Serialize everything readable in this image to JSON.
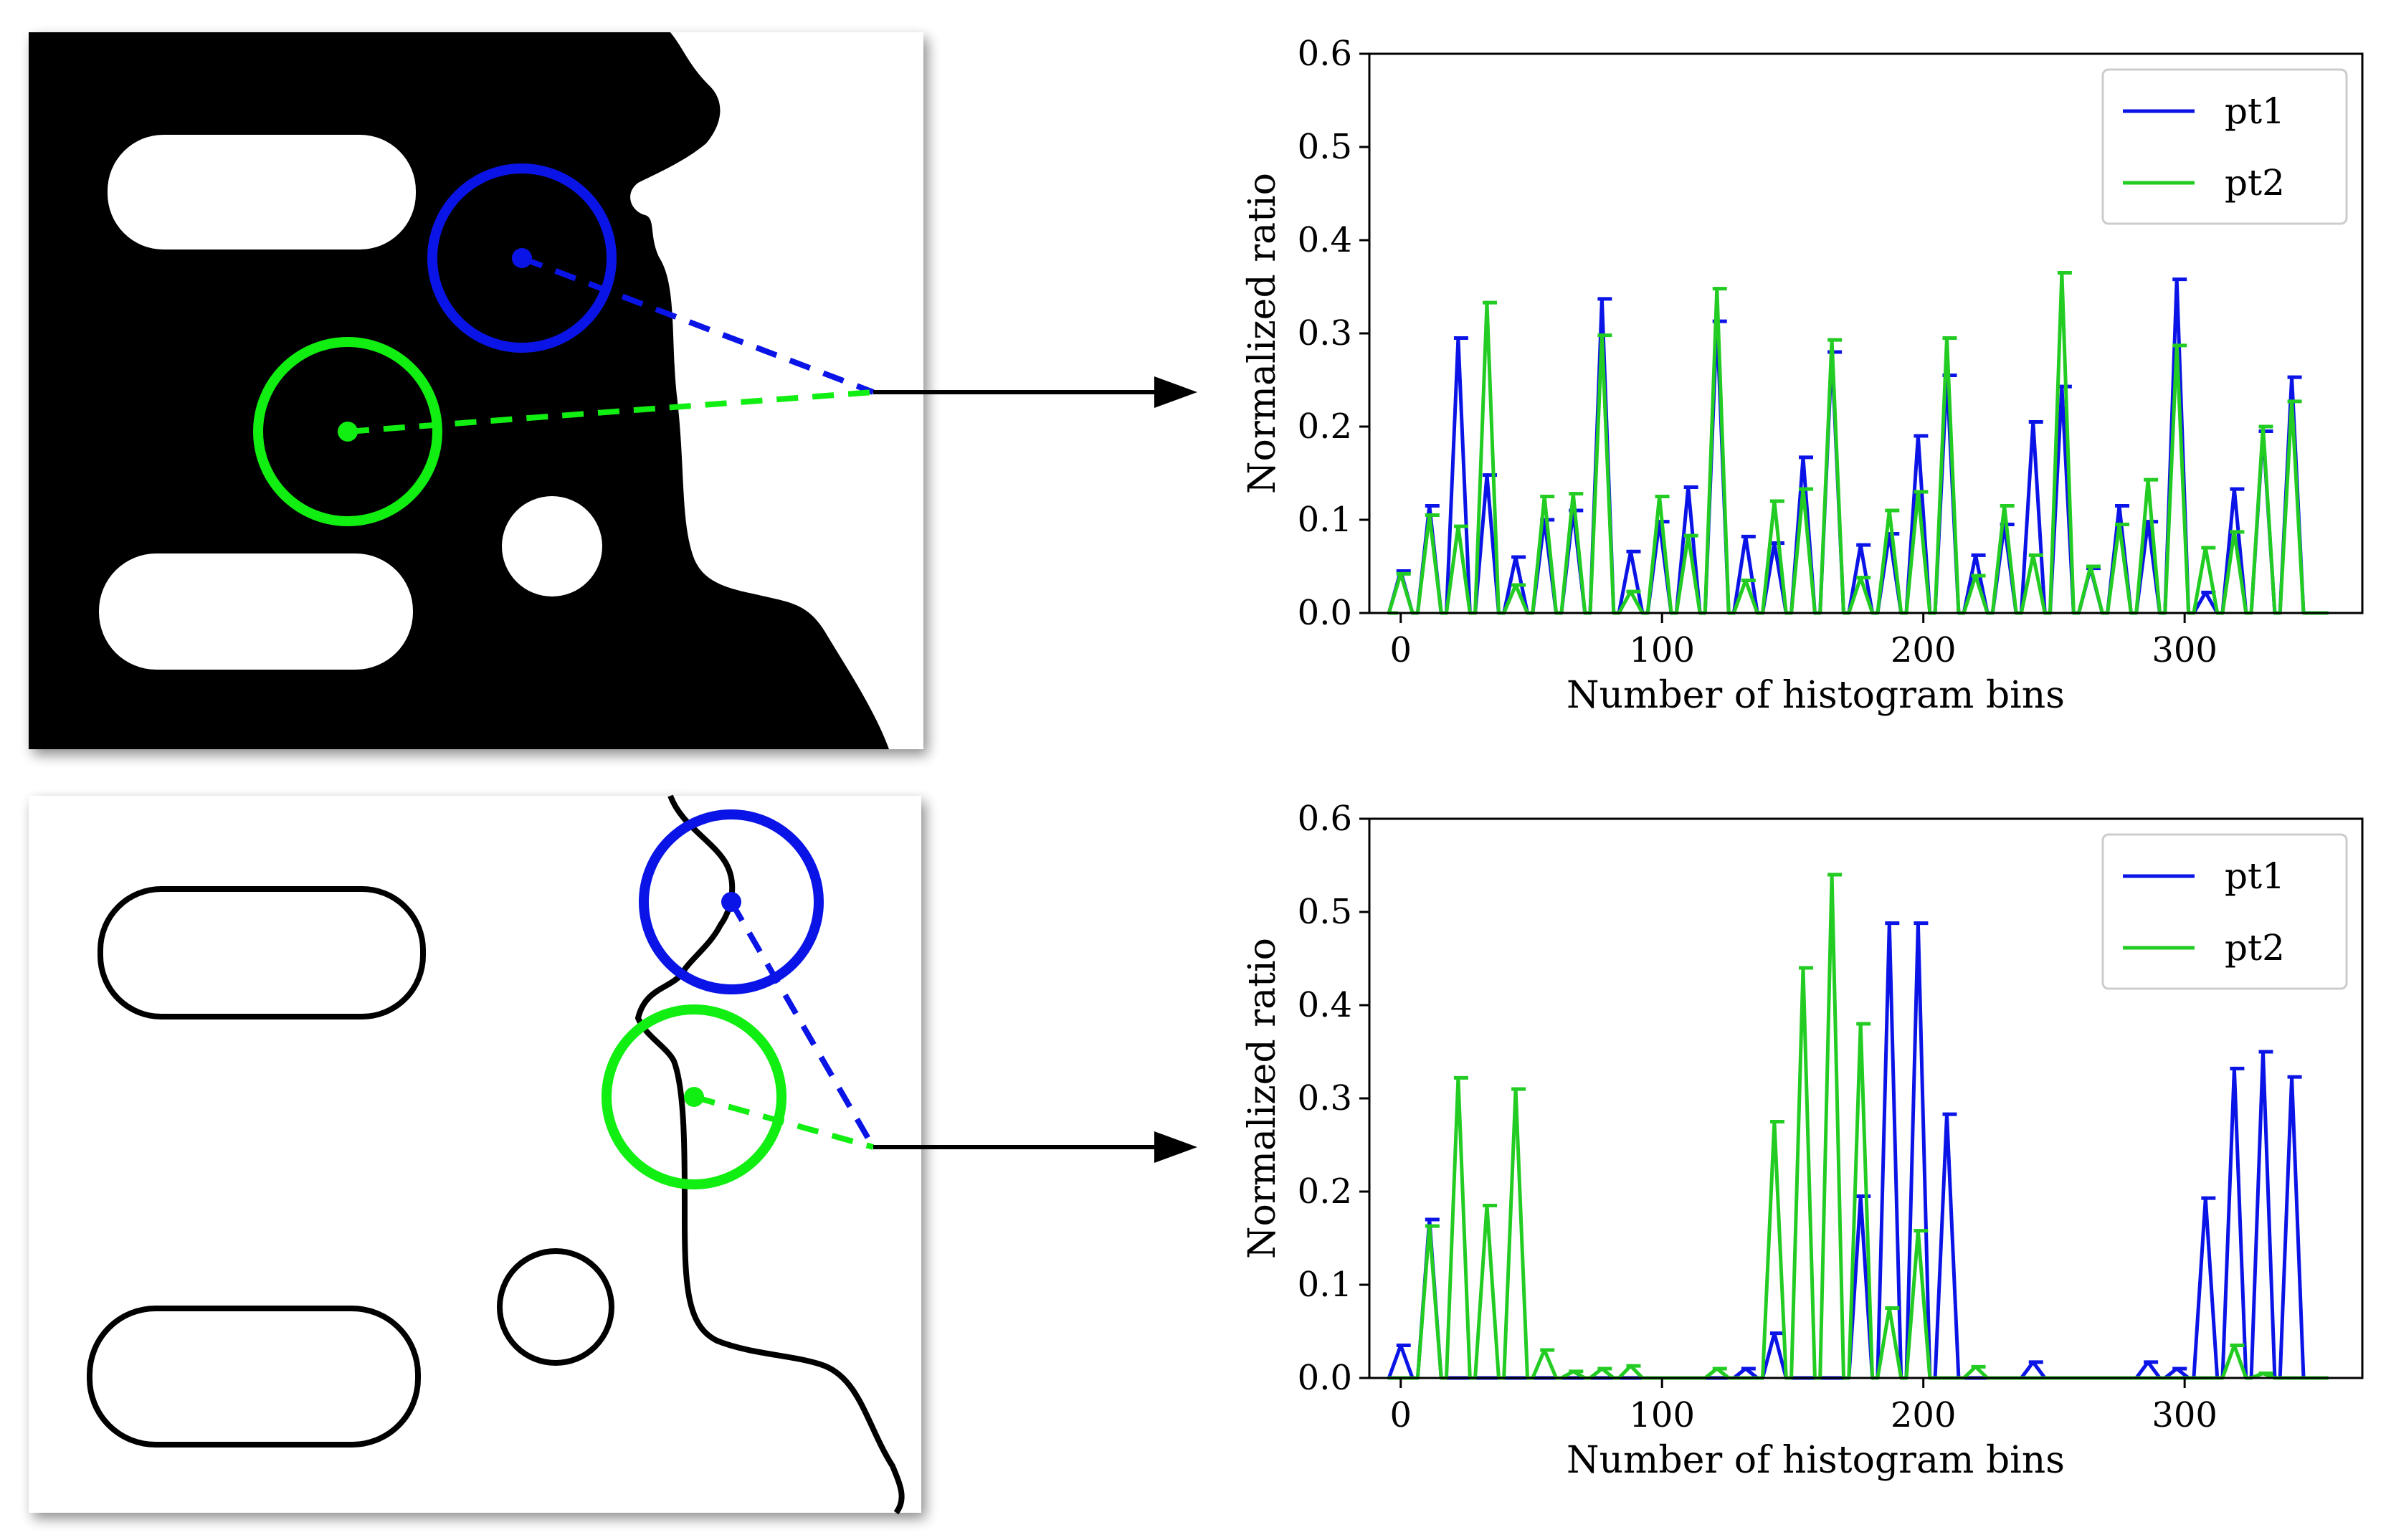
{
  "colors": {
    "pt1": "#0a14e6",
    "pt2": "#22cc22",
    "arrow": "#000000",
    "circle_pt1": "#0a14e6",
    "circle_pt2": "#11ee11"
  },
  "top_image": {
    "kind": "binary-silhouette",
    "description_icon": "binary-mask-image"
  },
  "bottom_image": {
    "kind": "edge-contours",
    "description_icon": "edge-map-image"
  },
  "chart_data": [
    {
      "type": "line",
      "xlabel": "Number of histogram bins",
      "ylabel": "Normalized ratio",
      "xlim": [
        -12,
        368
      ],
      "ylim": [
        0,
        0.6
      ],
      "xticks": [
        0,
        100,
        200,
        300
      ],
      "yticks": [
        "0.0",
        "0.1",
        "0.2",
        "0.3",
        "0.4",
        "0.5",
        "0.6"
      ],
      "legend_position": "top-right",
      "peak_x": [
        0,
        11,
        22,
        33,
        44,
        55,
        66,
        77,
        88,
        99,
        110,
        121,
        132,
        143,
        154,
        165,
        176,
        187,
        198,
        209,
        220,
        231,
        242,
        253,
        264,
        275,
        286,
        297,
        308,
        319,
        330,
        341
      ],
      "series": [
        {
          "name": "pt1",
          "color": "#0a14e6",
          "values": [
            0.045,
            0.115,
            0.295,
            0.148,
            0.06,
            0.1,
            0.11,
            0.337,
            0.066,
            0.098,
            0.135,
            0.313,
            0.082,
            0.075,
            0.167,
            0.28,
            0.073,
            0.085,
            0.19,
            0.255,
            0.062,
            0.095,
            0.205,
            0.243,
            0.048,
            0.115,
            0.098,
            0.358,
            0.022,
            0.133,
            0.195,
            0.253
          ]
        },
        {
          "name": "pt2",
          "color": "#22cc22",
          "values": [
            0.042,
            0.105,
            0.093,
            0.333,
            0.03,
            0.125,
            0.128,
            0.298,
            0.023,
            0.125,
            0.083,
            0.348,
            0.035,
            0.12,
            0.133,
            0.293,
            0.038,
            0.11,
            0.13,
            0.295,
            0.04,
            0.115,
            0.062,
            0.365,
            0.05,
            0.095,
            0.143,
            0.287,
            0.07,
            0.087,
            0.2,
            0.227
          ]
        }
      ]
    },
    {
      "type": "line",
      "xlabel": "Number of histogram bins",
      "ylabel": "Normalized ratio",
      "xlim": [
        -12,
        368
      ],
      "ylim": [
        0,
        0.6
      ],
      "xticks": [
        0,
        100,
        200,
        300
      ],
      "yticks": [
        "0.0",
        "0.1",
        "0.2",
        "0.3",
        "0.4",
        "0.5",
        "0.6"
      ],
      "legend_position": "top-right",
      "peak_x": [
        0,
        11,
        22,
        33,
        44,
        55,
        66,
        77,
        88,
        99,
        110,
        121,
        132,
        143,
        154,
        165,
        176,
        187,
        198,
        209,
        220,
        231,
        242,
        253,
        264,
        275,
        286,
        297,
        308,
        319,
        330,
        341
      ],
      "series": [
        {
          "name": "pt1",
          "color": "#0a14e6",
          "values": [
            0.035,
            0.17,
            0.0,
            0.0,
            0.0,
            0.0,
            0.0,
            0.0,
            0.0,
            0.0,
            0.0,
            0.0,
            0.01,
            0.048,
            0.0,
            0.0,
            0.195,
            0.488,
            0.488,
            0.283,
            0.0,
            0.0,
            0.017,
            0.0,
            0.0,
            0.0,
            0.017,
            0.01,
            0.193,
            0.332,
            0.35,
            0.323
          ]
        },
        {
          "name": "pt2",
          "color": "#22cc22",
          "values": [
            0.0,
            0.163,
            0.322,
            0.185,
            0.31,
            0.03,
            0.007,
            0.01,
            0.013,
            0.0,
            0.0,
            0.01,
            0.0,
            0.275,
            0.44,
            0.54,
            0.38,
            0.075,
            0.158,
            0.0,
            0.012,
            0.0,
            0.0,
            0.0,
            0.0,
            0.0,
            0.0,
            0.0,
            0.0,
            0.035,
            0.005,
            0.0
          ]
        }
      ]
    }
  ]
}
